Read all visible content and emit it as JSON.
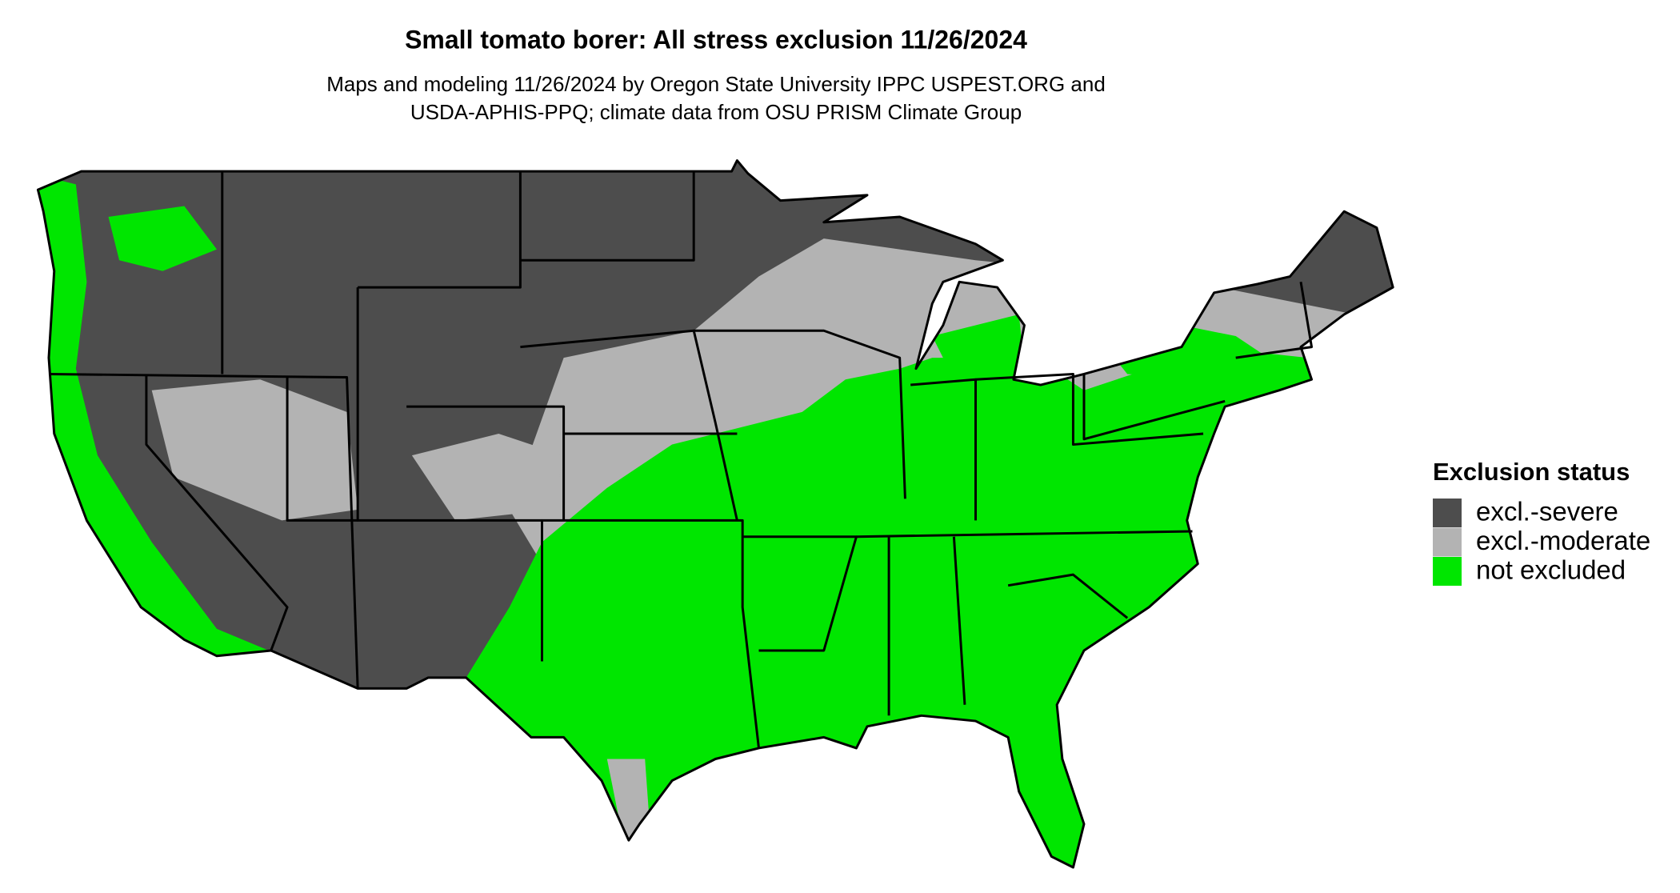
{
  "title": "Small tomato borer: All stress exclusion 11/26/2024",
  "subtitle": [
    "Maps and modeling 11/26/2024 by Oregon State University IPPC USPEST.ORG and",
    "USDA-APHIS-PPQ; climate data from OSU PRISM Climate Group"
  ],
  "legend": {
    "title": "Exclusion status",
    "items": [
      {
        "label": "excl.-severe",
        "color": "#4d4d4d"
      },
      {
        "label": "excl.-moderate",
        "color": "#b3b3b3"
      },
      {
        "label": "not excluded",
        "color": "#00e600"
      }
    ]
  }
}
